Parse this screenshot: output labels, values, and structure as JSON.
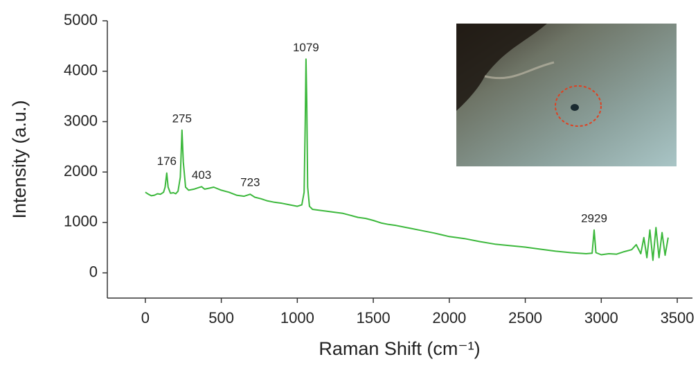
{
  "chart_data": {
    "type": "line",
    "xlabel": "Raman Shift (cm⁻¹)",
    "ylabel": "Intensity (a.u.)",
    "xlim": [
      -250,
      3600
    ],
    "ylim": [
      -500,
      5000
    ],
    "xticks": [
      0,
      500,
      1000,
      1500,
      2000,
      2500,
      3000,
      3500
    ],
    "yticks": [
      0,
      1000,
      2000,
      3000,
      4000,
      5000
    ],
    "series": [
      {
        "color": "#3cb83c",
        "x": [
          0,
          20,
          40,
          60,
          80,
          100,
          120,
          130,
          141,
          150,
          165,
          185,
          200,
          215,
          230,
          241,
          250,
          265,
          285,
          320,
          350,
          370,
          390,
          420,
          450,
          500,
          550,
          600,
          650,
          690,
          720,
          760,
          800,
          850,
          900,
          950,
          1000,
          1030,
          1045,
          1052,
          1057,
          1062,
          1068,
          1080,
          1100,
          1150,
          1200,
          1250,
          1300,
          1350,
          1400,
          1450,
          1500,
          1550,
          1600,
          1650,
          1700,
          1750,
          1800,
          1900,
          2000,
          2100,
          2200,
          2300,
          2400,
          2500,
          2600,
          2700,
          2800,
          2900,
          2940,
          2953,
          2965,
          3000,
          3050,
          3100,
          3150,
          3200,
          3230,
          3260,
          3280,
          3300,
          3320,
          3340,
          3360,
          3380,
          3400,
          3420,
          3440
        ],
        "values": [
          1600,
          1560,
          1530,
          1540,
          1570,
          1560,
          1600,
          1700,
          1980,
          1700,
          1580,
          1590,
          1570,
          1620,
          1900,
          2830,
          2200,
          1700,
          1640,
          1660,
          1690,
          1710,
          1660,
          1680,
          1700,
          1640,
          1600,
          1540,
          1520,
          1560,
          1500,
          1470,
          1430,
          1400,
          1380,
          1350,
          1320,
          1350,
          1600,
          3000,
          4240,
          3400,
          1700,
          1320,
          1260,
          1240,
          1220,
          1200,
          1180,
          1140,
          1100,
          1080,
          1040,
          990,
          960,
          940,
          910,
          880,
          850,
          790,
          720,
          680,
          620,
          570,
          540,
          510,
          470,
          430,
          400,
          380,
          390,
          850,
          400,
          360,
          380,
          370,
          420,
          460,
          560,
          380,
          700,
          300,
          850,
          250,
          900,
          300,
          800,
          350,
          700
        ]
      }
    ],
    "annotations": [
      {
        "text": "176",
        "x": 141,
        "y": 1980
      },
      {
        "text": "275",
        "x": 241,
        "y": 2830
      },
      {
        "text": "403",
        "x": 370,
        "y": 1710
      },
      {
        "text": "723",
        "x": 690,
        "y": 1560
      },
      {
        "text": "1079",
        "x": 1057,
        "y": 4240
      },
      {
        "text": "2929",
        "x": 2953,
        "y": 850
      }
    ]
  }
}
